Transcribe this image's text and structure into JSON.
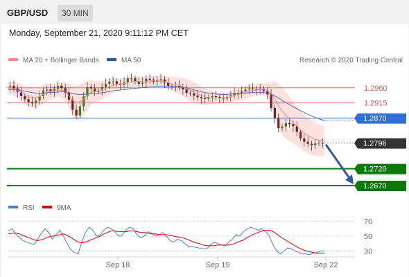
{
  "header": {
    "pair": "GBP/USD",
    "timeframe": "30 MIN"
  },
  "timestamp": "Monday, September 21, 2020 9:11:12 PM CET",
  "legend": {
    "main": [
      {
        "label": "MA 20 + Bollinger Bands",
        "color": "#f28b82"
      },
      {
        "label": "MA 50",
        "color": "#2c5aa0"
      }
    ],
    "copyright": "Research © 2020 Trading Central",
    "rsi": [
      {
        "label": "RSI",
        "color": "#4a7fd4"
      },
      {
        "label": "9MA",
        "color": "#e00000"
      }
    ]
  },
  "chart_data": [
    {
      "type": "candlestick",
      "x_ticks": [
        "Sep 18",
        "Sep 19",
        "Sep 22"
      ],
      "ylim": [
        1.2635,
        1.3015
      ],
      "levels": [
        {
          "value": 1.296,
          "label": "1.2960",
          "color": "#e05050",
          "style": "resistance"
        },
        {
          "value": 1.2915,
          "label": "1.2915",
          "color": "#e05050",
          "style": "resistance"
        },
        {
          "value": 1.287,
          "label": "1.2870",
          "color": "#2f6fd6",
          "style": "pivot"
        },
        {
          "value": 1.2796,
          "label": "1.2796",
          "color": "#333333",
          "style": "last-price"
        },
        {
          "value": 1.272,
          "label": "1.2720",
          "color": "#0a7a0a",
          "style": "support"
        },
        {
          "value": 1.267,
          "label": "1.2670",
          "color": "#0a7a0a",
          "style": "support"
        }
      ],
      "forecast_arrow": {
        "from": 1.2796,
        "to": 1.267,
        "color": "#2c5aa0"
      },
      "price_path": [
        1.2963,
        1.2966,
        1.2958,
        1.2948,
        1.2935,
        1.2926,
        1.2918,
        1.2914,
        1.2922,
        1.2935,
        1.2952,
        1.2955,
        1.2949,
        1.2957,
        1.2966,
        1.2959,
        1.2945,
        1.2925,
        1.2895,
        1.2878,
        1.2905,
        1.2935,
        1.2962,
        1.2958,
        1.2948,
        1.2952,
        1.2962,
        1.2972,
        1.2978,
        1.2979,
        1.2972,
        1.2969,
        1.2976,
        1.2988,
        1.2988,
        1.2978,
        1.2972,
        1.2975,
        1.2987,
        1.2984,
        1.2978,
        1.2982,
        1.2985,
        1.2975,
        1.2965,
        1.2963,
        1.2966,
        1.2962,
        1.2955,
        1.2945,
        1.2943,
        1.2937,
        1.2932,
        1.2929,
        1.2927,
        1.2932,
        1.2935,
        1.2933,
        1.293,
        1.2928,
        1.2933,
        1.2938,
        1.2945,
        1.2942,
        1.295,
        1.2955,
        1.2958,
        1.2956,
        1.2954,
        1.2957,
        1.295,
        1.294,
        1.29,
        1.287,
        1.284,
        1.2845,
        1.2855,
        1.2852,
        1.2846,
        1.2829,
        1.281,
        1.28,
        1.2794,
        1.279,
        1.2795,
        1.2797,
        1.2796
      ],
      "ma20": [
        1.296,
        1.2959,
        1.2955,
        1.2949,
        1.2942,
        1.2936,
        1.2932,
        1.293,
        1.2932,
        1.2937,
        1.2944,
        1.2948,
        1.295,
        1.2953,
        1.2954,
        1.2951,
        1.2943,
        1.293,
        1.2917,
        1.2915,
        1.2922,
        1.2932,
        1.2942,
        1.2948,
        1.295,
        1.2952,
        1.2956,
        1.2961,
        1.2966,
        1.2969,
        1.2971,
        1.2972,
        1.2974,
        1.2977,
        1.2979,
        1.2979,
        1.2978,
        1.2978,
        1.298,
        1.2981,
        1.298,
        1.298,
        1.298,
        1.2977,
        1.2973,
        1.297,
        1.2968,
        1.2965,
        1.296,
        1.2954,
        1.2949,
        1.2944,
        1.2939,
        1.2935,
        1.2932,
        1.293,
        1.293,
        1.293,
        1.293,
        1.293,
        1.2932,
        1.2935,
        1.2939,
        1.2941,
        1.2945,
        1.2948,
        1.2951,
        1.2953,
        1.2954,
        1.2955,
        1.2953,
        1.2948,
        1.2936,
        1.2918,
        1.2898,
        1.2884,
        1.2873,
        1.2862,
        1.2852,
        1.2841,
        1.283,
        1.2822,
        1.2815,
        1.281,
        1.2806,
        1.2803,
        1.2801
      ],
      "ma50": [
        1.2955,
        1.2955,
        1.2954,
        1.2953,
        1.2951,
        1.2949,
        1.2947,
        1.2945,
        1.2944,
        1.2944,
        1.2945,
        1.2946,
        1.2946,
        1.2947,
        1.2948,
        1.2948,
        1.2947,
        1.2945,
        1.2942,
        1.294,
        1.294,
        1.2941,
        1.2942,
        1.2943,
        1.2944,
        1.2945,
        1.2946,
        1.2948,
        1.295,
        1.2952,
        1.2953,
        1.2954,
        1.2955,
        1.2957,
        1.2958,
        1.2959,
        1.296,
        1.2961,
        1.2962,
        1.2963,
        1.2964,
        1.2964,
        1.2965,
        1.2965,
        1.2965,
        1.2964,
        1.2963,
        1.2962,
        1.296,
        1.2958,
        1.2956,
        1.2953,
        1.295,
        1.2947,
        1.2945,
        1.2943,
        1.2942,
        1.2941,
        1.294,
        1.294,
        1.2941,
        1.2942,
        1.2943,
        1.2943,
        1.2944,
        1.2945,
        1.2946,
        1.2946,
        1.2946,
        1.2946,
        1.2945,
        1.2943,
        1.2939,
        1.2933,
        1.2926,
        1.2919,
        1.2913,
        1.2907,
        1.2901,
        1.2895,
        1.2889,
        1.2884,
        1.2879,
        1.2874,
        1.287,
        1.2866,
        1.2862
      ],
      "bb_width": [
        0.002,
        0.002,
        0.0022,
        0.0024,
        0.0026,
        0.0028,
        0.003,
        0.0032,
        0.003,
        0.0028,
        0.0026,
        0.0024,
        0.0022,
        0.002,
        0.0022,
        0.0026,
        0.0032,
        0.004,
        0.0048,
        0.0052,
        0.005,
        0.0046,
        0.004,
        0.0034,
        0.003,
        0.0028,
        0.0026,
        0.0024,
        0.0022,
        0.002,
        0.0018,
        0.0016,
        0.0016,
        0.0016,
        0.0016,
        0.0016,
        0.0016,
        0.0016,
        0.0016,
        0.0016,
        0.0016,
        0.0016,
        0.0016,
        0.0018,
        0.002,
        0.0022,
        0.0024,
        0.0026,
        0.0028,
        0.003,
        0.003,
        0.003,
        0.0028,
        0.0026,
        0.0024,
        0.002,
        0.0018,
        0.0016,
        0.0016,
        0.0016,
        0.0016,
        0.0016,
        0.0018,
        0.002,
        0.002,
        0.002,
        0.0018,
        0.0018,
        0.0018,
        0.0018,
        0.002,
        0.0028,
        0.0045,
        0.006,
        0.0068,
        0.007,
        0.0068,
        0.0064,
        0.006,
        0.0058,
        0.0056,
        0.0054,
        0.0052,
        0.005,
        0.0048,
        0.0046,
        0.0044
      ]
    },
    {
      "type": "line",
      "name": "RSI",
      "ylim": [
        22,
        78
      ],
      "y_ticks": [
        70,
        50,
        30
      ],
      "rsi": [
        57,
        60,
        53,
        48,
        44,
        42,
        40,
        39,
        46,
        54,
        60,
        55,
        46,
        52,
        58,
        50,
        40,
        32,
        28,
        26,
        42,
        55,
        62,
        58,
        50,
        52,
        58,
        62,
        60,
        56,
        50,
        52,
        58,
        62,
        60,
        52,
        48,
        50,
        56,
        54,
        50,
        52,
        55,
        50,
        44,
        42,
        46,
        44,
        40,
        36,
        36,
        35,
        34,
        33,
        33,
        38,
        42,
        40,
        38,
        37,
        42,
        46,
        52,
        50,
        56,
        60,
        62,
        60,
        58,
        60,
        56,
        50,
        38,
        30,
        26,
        30,
        34,
        33,
        30,
        28,
        26,
        26,
        25,
        27,
        28,
        30,
        30
      ],
      "ma9": [
        53,
        54,
        54,
        53,
        51,
        49,
        47,
        45,
        44,
        45,
        47,
        49,
        50,
        51,
        52,
        53,
        51,
        48,
        45,
        42,
        41,
        42,
        44,
        46,
        48,
        50,
        53,
        55,
        57,
        57,
        56,
        56,
        56,
        57,
        57,
        56,
        55,
        55,
        54,
        53,
        53,
        52,
        52,
        52,
        51,
        50,
        49,
        48,
        47,
        45,
        43,
        41,
        40,
        38,
        37,
        37,
        37,
        38,
        38,
        38,
        38,
        39,
        41,
        43,
        45,
        48,
        51,
        53,
        55,
        57,
        58,
        58,
        56,
        53,
        49,
        46,
        43,
        40,
        37,
        34,
        32,
        30,
        29,
        28,
        27,
        27,
        27
      ]
    }
  ]
}
